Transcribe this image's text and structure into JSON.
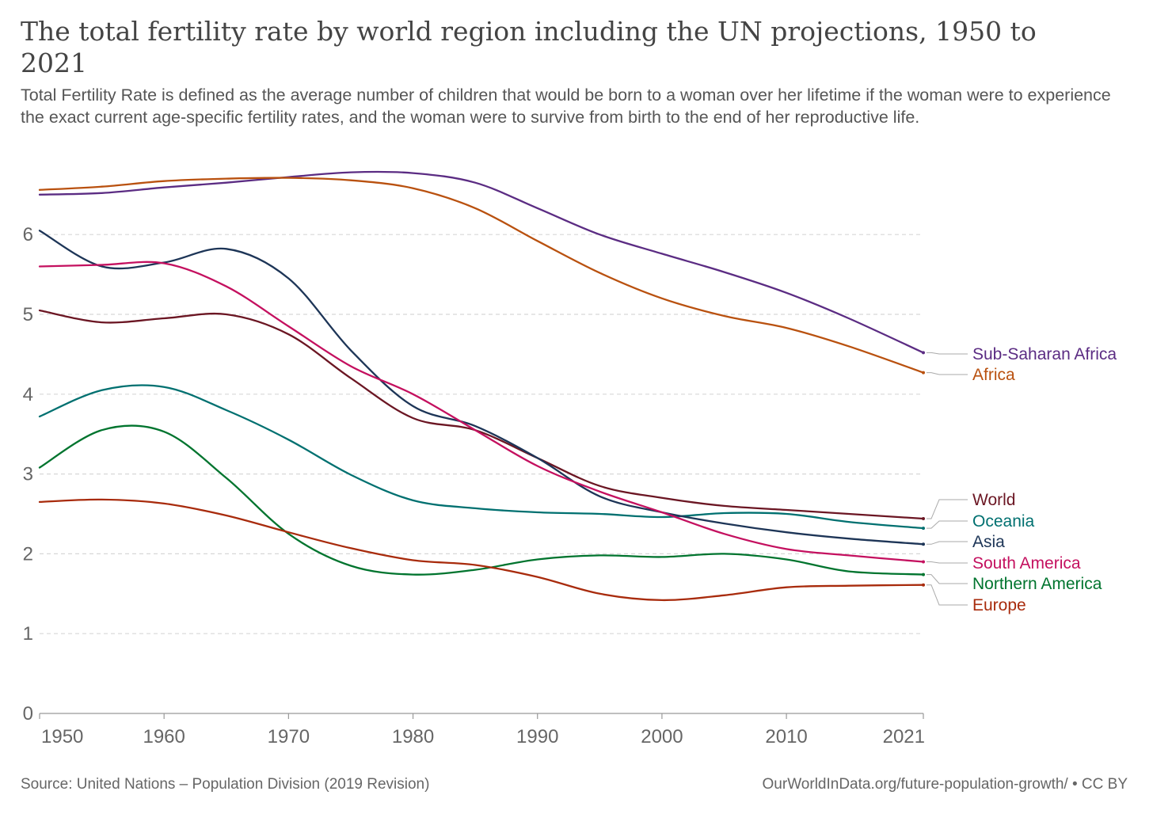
{
  "header": {
    "title": "The total fertility rate by world region including the UN projections, 1950 to 2021",
    "subtitle": "Total Fertility Rate is defined as the average number of children that would be born to a woman over her lifetime if the woman were to experience the exact current age-specific fertility rates, and the woman were to survive from birth to the end of her reproductive life."
  },
  "footer": {
    "source": "Source: United Nations – Population Division (2019 Revision)",
    "credit": "OurWorldInData.org/future-population-growth/ • CC BY"
  },
  "chart_data": {
    "type": "line",
    "title": "The total fertility rate by world region including the UN projections, 1950 to 2021",
    "subtitle": "Total Fertility Rate is defined as the average number of children that would be born to a woman over her lifetime if the woman were to experience the exact current age-specific fertility rates, and the woman were to survive from birth to the end of her reproductive life.",
    "xlabel": "",
    "ylabel": "",
    "xlim": [
      1950,
      2021
    ],
    "ylim": [
      0,
      7
    ],
    "x_ticks": [
      1950,
      1960,
      1970,
      1980,
      1990,
      2000,
      2010,
      2021
    ],
    "y_ticks": [
      0,
      1,
      2,
      3,
      4,
      5,
      6
    ],
    "grid": "horizontal dashed",
    "legend": "right, labels at line ends",
    "series": [
      {
        "name": "Sub-Saharan Africa",
        "color": "#5b2c83",
        "x": [
          1950,
          1955,
          1960,
          1965,
          1970,
          1975,
          1980,
          1985,
          1990,
          1995,
          2000,
          2005,
          2010,
          2015,
          2021
        ],
        "values": [
          6.5,
          6.52,
          6.59,
          6.65,
          6.72,
          6.78,
          6.77,
          6.65,
          6.33,
          6.0,
          5.76,
          5.53,
          5.27,
          4.95,
          4.52
        ]
      },
      {
        "name": "Africa",
        "color": "#b9510f",
        "x": [
          1950,
          1955,
          1960,
          1965,
          1970,
          1975,
          1980,
          1985,
          1990,
          1995,
          2000,
          2005,
          2010,
          2015,
          2021
        ],
        "values": [
          6.56,
          6.6,
          6.67,
          6.7,
          6.71,
          6.68,
          6.58,
          6.33,
          5.92,
          5.52,
          5.2,
          4.98,
          4.83,
          4.6,
          4.27
        ]
      },
      {
        "name": "World",
        "color": "#6b1623",
        "x": [
          1950,
          1955,
          1960,
          1965,
          1970,
          1975,
          1980,
          1985,
          1990,
          1995,
          2000,
          2005,
          2010,
          2015,
          2021
        ],
        "values": [
          5.05,
          4.9,
          4.95,
          5.0,
          4.75,
          4.2,
          3.7,
          3.55,
          3.2,
          2.85,
          2.7,
          2.6,
          2.55,
          2.5,
          2.44
        ]
      },
      {
        "name": "Oceania",
        "color": "#007070",
        "x": [
          1950,
          1955,
          1960,
          1965,
          1970,
          1975,
          1980,
          1985,
          1990,
          1995,
          2000,
          2005,
          2010,
          2015,
          2021
        ],
        "values": [
          3.72,
          4.05,
          4.09,
          3.8,
          3.43,
          2.99,
          2.67,
          2.57,
          2.52,
          2.5,
          2.46,
          2.51,
          2.5,
          2.4,
          2.32
        ]
      },
      {
        "name": "Asia",
        "color": "#1d3557",
        "x": [
          1950,
          1955,
          1960,
          1965,
          1970,
          1975,
          1980,
          1985,
          1990,
          1995,
          2000,
          2005,
          2010,
          2015,
          2021
        ],
        "values": [
          6.05,
          5.6,
          5.65,
          5.82,
          5.45,
          4.55,
          3.85,
          3.6,
          3.2,
          2.72,
          2.52,
          2.38,
          2.27,
          2.19,
          2.12
        ]
      },
      {
        "name": "South America",
        "color": "#c4105f",
        "x": [
          1950,
          1955,
          1960,
          1965,
          1970,
          1975,
          1980,
          1985,
          1990,
          1995,
          2000,
          2005,
          2010,
          2015,
          2021
        ],
        "values": [
          5.6,
          5.62,
          5.64,
          5.35,
          4.85,
          4.35,
          4.0,
          3.55,
          3.1,
          2.78,
          2.52,
          2.25,
          2.06,
          1.98,
          1.9
        ]
      },
      {
        "name": "Northern America",
        "color": "#00742e",
        "x": [
          1950,
          1955,
          1960,
          1965,
          1970,
          1975,
          1980,
          1985,
          1990,
          1995,
          2000,
          2005,
          2010,
          2015,
          2021
        ],
        "values": [
          3.08,
          3.55,
          3.53,
          2.95,
          2.25,
          1.85,
          1.74,
          1.8,
          1.93,
          1.98,
          1.96,
          2.0,
          1.93,
          1.78,
          1.74
        ]
      },
      {
        "name": "Europe",
        "color": "#a82b0c",
        "x": [
          1950,
          1955,
          1960,
          1965,
          1970,
          1975,
          1980,
          1985,
          1990,
          1995,
          2000,
          2005,
          2010,
          2015,
          2021
        ],
        "values": [
          2.65,
          2.68,
          2.63,
          2.48,
          2.27,
          2.07,
          1.92,
          1.86,
          1.71,
          1.5,
          1.42,
          1.48,
          1.58,
          1.6,
          1.61
        ]
      }
    ]
  }
}
